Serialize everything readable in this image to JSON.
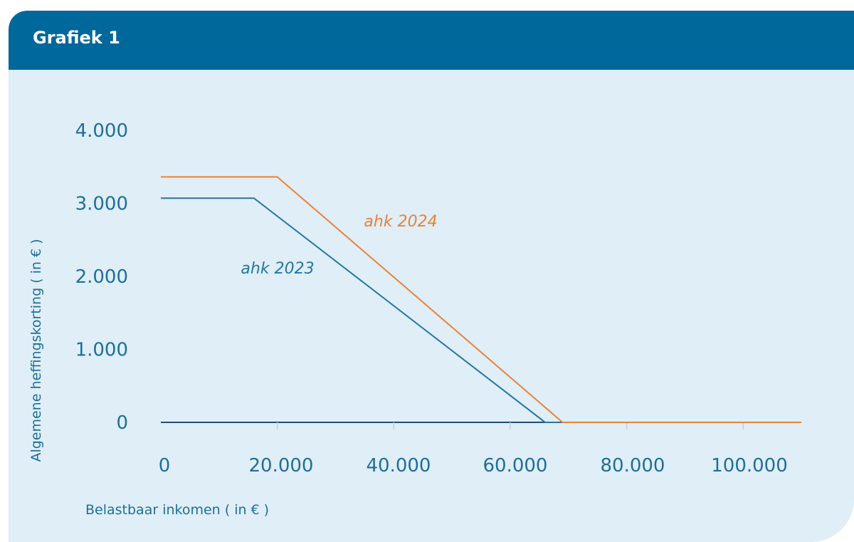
{
  "header": {
    "title": "Grafiek 1"
  },
  "chart_data": {
    "type": "line",
    "title": "",
    "xlabel": "Belastbaar inkomen ( in € )",
    "ylabel": "Algemene heffingskorting ( in € )",
    "xlim": [
      0,
      110000
    ],
    "ylim": [
      0,
      4000
    ],
    "x_ticks": [
      0,
      20000,
      40000,
      60000,
      80000,
      100000
    ],
    "x_tick_labels": [
      "0",
      "20.000",
      "40.000",
      "60.000",
      "80.000",
      "100.000"
    ],
    "y_ticks": [
      0,
      1000,
      2000,
      3000,
      4000
    ],
    "y_tick_labels": [
      "0",
      "1.000",
      "2.000",
      "3.000",
      "4.000"
    ],
    "grid": false,
    "legend": "inline",
    "series": [
      {
        "name": "ahk 2023",
        "color": "#2477a4",
        "points": [
          [
            0,
            3070
          ],
          [
            16000,
            3070
          ],
          [
            66000,
            0
          ],
          [
            110000,
            0
          ]
        ]
      },
      {
        "name": "ahk 2024",
        "color": "#e8833a",
        "points": [
          [
            0,
            3362
          ],
          [
            20000,
            3362
          ],
          [
            69000,
            0
          ],
          [
            110000,
            0
          ]
        ]
      }
    ]
  }
}
